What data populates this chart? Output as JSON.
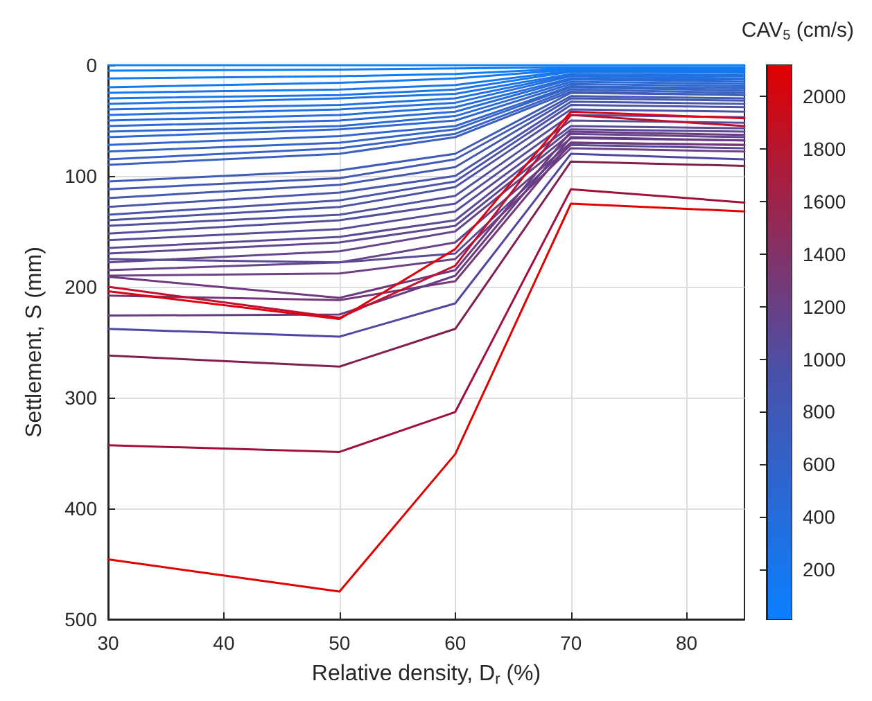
{
  "chart_data": {
    "type": "line",
    "xlabel": "Relative density, D$_{r}$ (%)",
    "ylabel": "Settlement, S (mm)",
    "clabel": "CAV$_{5}$ (cm/s)",
    "x": [
      30,
      50,
      60,
      70,
      85
    ],
    "xlim": [
      30,
      85
    ],
    "xticks": [
      30,
      40,
      50,
      60,
      70,
      80
    ],
    "ylim": [
      500,
      0
    ],
    "yticks": [
      0,
      100,
      200,
      300,
      400,
      500
    ],
    "clim": [
      10,
      2120
    ],
    "cticks": [
      200,
      400,
      600,
      800,
      1000,
      1200,
      1400,
      1600,
      1800,
      2000
    ],
    "grid": true,
    "series": [
      {
        "color": "#0a80fb",
        "values": [
          0,
          0,
          0,
          0,
          0
        ]
      },
      {
        "color": "#0d7ef8",
        "values": [
          5,
          4,
          3,
          2,
          2
        ]
      },
      {
        "color": "#107cf5",
        "values": [
          12,
          10,
          8,
          3,
          3
        ]
      },
      {
        "color": "#147af2",
        "values": [
          20,
          16,
          12,
          4,
          4
        ]
      },
      {
        "color": "#1778ee",
        "values": [
          25,
          22,
          18,
          5,
          6
        ]
      },
      {
        "color": "#1a76eb",
        "values": [
          30,
          27,
          22,
          6,
          7
        ]
      },
      {
        "color": "#1d74e8",
        "values": [
          35,
          30,
          26,
          8,
          9
        ]
      },
      {
        "color": "#2072e4",
        "values": [
          40,
          36,
          30,
          9,
          10
        ]
      },
      {
        "color": "#2370e0",
        "values": [
          45,
          40,
          34,
          10,
          12
        ]
      },
      {
        "color": "#266edc",
        "values": [
          50,
          45,
          38,
          12,
          13
        ]
      },
      {
        "color": "#296cd8",
        "values": [
          55,
          50,
          42,
          13,
          15
        ]
      },
      {
        "color": "#2c6ad4",
        "values": [
          60,
          55,
          46,
          15,
          17
        ]
      },
      {
        "color": "#2f68d0",
        "values": [
          65,
          58,
          50,
          17,
          19
        ]
      },
      {
        "color": "#3266cc",
        "values": [
          72,
          64,
          55,
          19,
          21
        ]
      },
      {
        "color": "#3564c8",
        "values": [
          78,
          70,
          58,
          20,
          23
        ]
      },
      {
        "color": "#3862c4",
        "values": [
          85,
          75,
          62,
          22,
          25
        ]
      },
      {
        "color": "#3b60c0",
        "values": [
          90,
          80,
          65,
          24,
          27
        ]
      },
      {
        "color": "#3f5cb8",
        "values": [
          105,
          95,
          80,
          25,
          27
        ]
      },
      {
        "color": "#425ab4",
        "values": [
          112,
          102,
          85,
          28,
          30
        ]
      },
      {
        "color": "#4558b0",
        "values": [
          120,
          108,
          92,
          30,
          32
        ]
      },
      {
        "color": "#4856ac",
        "values": [
          128,
          115,
          100,
          33,
          35
        ]
      },
      {
        "color": "#4b54a8",
        "values": [
          135,
          122,
          105,
          36,
          38
        ]
      },
      {
        "color": "#4e52a4",
        "values": [
          140,
          128,
          110,
          40,
          42
        ]
      },
      {
        "color": "#5250a0",
        "values": [
          145,
          135,
          118,
          45,
          47
        ]
      },
      {
        "color": "#554e9c",
        "values": [
          152,
          140,
          125,
          50,
          52
        ]
      },
      {
        "color": "#584c98",
        "values": [
          158,
          148,
          132,
          55,
          57
        ]
      },
      {
        "color": "#5c4a94",
        "values": [
          165,
          155,
          140,
          58,
          60
        ]
      },
      {
        "color": "#604890",
        "values": [
          170,
          160,
          145,
          62,
          65
        ]
      },
      {
        "color": "#64468c",
        "values": [
          178,
          168,
          150,
          66,
          68
        ]
      },
      {
        "color": "#684488",
        "values": [
          185,
          178,
          160,
          70,
          72
        ]
      },
      {
        "color": "#6c4284",
        "values": [
          190,
          188,
          175,
          75,
          78
        ]
      },
      {
        "color": "#5a4a98",
        "values": [
          175,
          178,
          170,
          72,
          75
        ]
      },
      {
        "color": "#703a80",
        "values": [
          191,
          210,
          185,
          60,
          63
        ]
      },
      {
        "color": "#743878",
        "values": [
          208,
          212,
          195,
          70,
          72
        ]
      },
      {
        "color": "#683c84",
        "values": [
          226,
          225,
          190,
          65,
          68
        ]
      },
      {
        "color": "#5048a0",
        "values": [
          238,
          245,
          215,
          80,
          85
        ]
      },
      {
        "color": "#802050",
        "values": [
          262,
          272,
          238,
          87,
          91
        ]
      },
      {
        "color": "#c01030",
        "values": [
          200,
          228,
          181,
          45,
          55
        ]
      },
      {
        "color": "#e00010",
        "values": [
          204,
          229,
          166,
          42,
          48
        ]
      },
      {
        "color": "#a0103a",
        "values": [
          343,
          349,
          313,
          112,
          124
        ]
      },
      {
        "color": "#e00000",
        "values": [
          446,
          475,
          351,
          125,
          132
        ]
      }
    ]
  }
}
